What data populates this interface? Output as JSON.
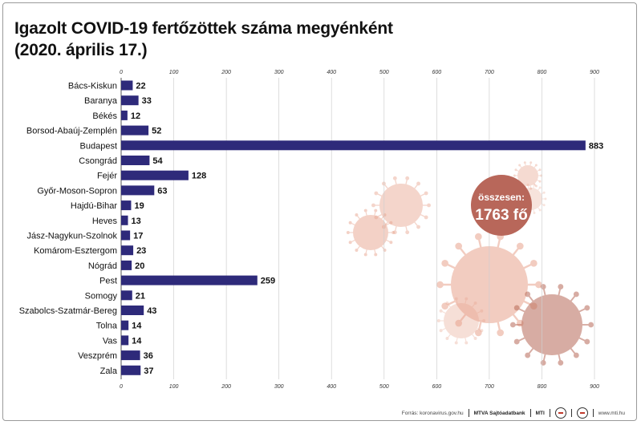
{
  "title_line1": "Igazolt COVID-19 fertőzöttek száma megyénként",
  "title_line2": "(2020. április 17.)",
  "total": {
    "label": "összesen:",
    "value": "1763 fő"
  },
  "footer": {
    "source": "Forrás: koronavirus.gov.hu",
    "agency": "MTVA Sajtóadatbank",
    "mti": "MTI",
    "site": "www.mti.hu"
  },
  "colors": {
    "bar": "#2e2a7a",
    "badge": "#b8675a",
    "virus": "#e8a48e",
    "virus_dark": "#b86a58"
  },
  "icons": [
    "virus-illustration",
    "mtva-logo-icon",
    "mti-logo-icon"
  ],
  "chart_data": {
    "type": "bar",
    "orientation": "horizontal",
    "categories": [
      "Bács-Kiskun",
      "Baranya",
      "Békés",
      "Borsod-Abaúj-Zemplén",
      "Budapest",
      "Csongrád",
      "Fejér",
      "Győr-Moson-Sopron",
      "Hajdú-Bihar",
      "Heves",
      "Jász-Nagykun-Szolnok",
      "Komárom-Esztergom",
      "Nógrád",
      "Pest",
      "Somogy",
      "Szabolcs-Szatmár-Bereg",
      "Tolna",
      "Vas",
      "Veszprém",
      "Zala"
    ],
    "values": [
      22,
      33,
      12,
      52,
      883,
      54,
      128,
      63,
      19,
      13,
      17,
      23,
      20,
      259,
      21,
      43,
      14,
      14,
      36,
      37
    ],
    "xlim": [
      0,
      900
    ],
    "ticks": [
      0,
      100,
      200,
      300,
      400,
      500,
      600,
      700,
      800,
      900
    ],
    "grid": true,
    "xlabel": "",
    "ylabel": ""
  }
}
